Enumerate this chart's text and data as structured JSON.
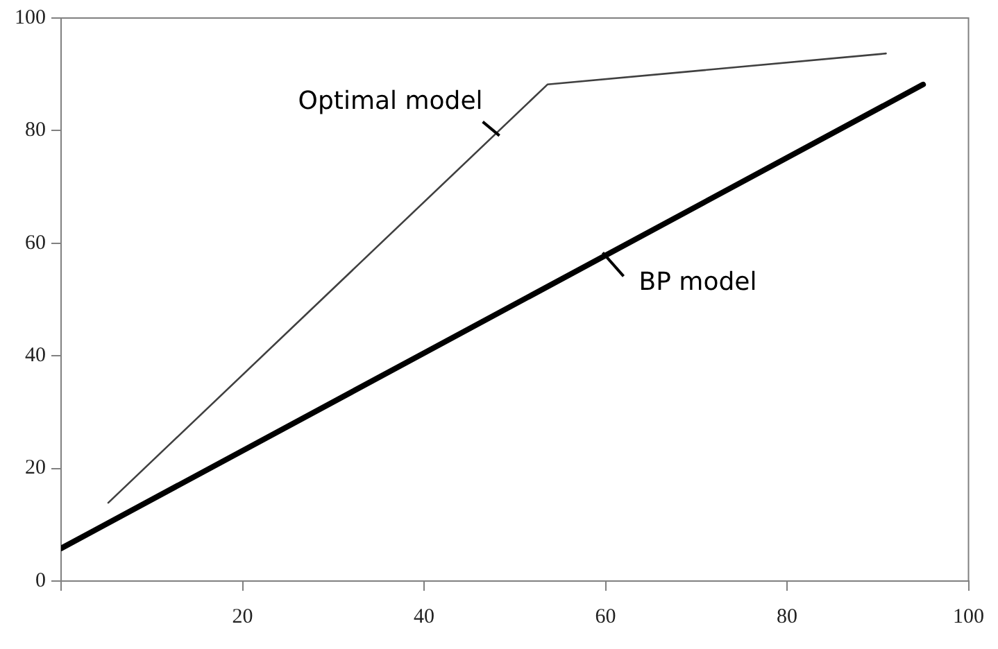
{
  "chart_data": {
    "type": "line",
    "xlim": [
      0,
      100
    ],
    "ylim": [
      0,
      100
    ],
    "xticks": [
      {
        "value": 0,
        "label": null
      },
      20,
      40,
      60,
      80,
      100
    ],
    "yticks": [
      0,
      20,
      40,
      60,
      80,
      100
    ],
    "grid": false,
    "legend": false,
    "marker": "none",
    "line_style": "solid",
    "series": [
      {
        "name": "Optimal model",
        "color": "#404040",
        "x": [
          5.2,
          53.6,
          90.9
        ],
        "values": [
          13.9,
          88.2,
          93.7
        ]
      },
      {
        "name": "BP model",
        "color": "#000000",
        "x": [
          0,
          95
        ],
        "values": [
          5.8,
          88.2
        ]
      }
    ]
  }
}
